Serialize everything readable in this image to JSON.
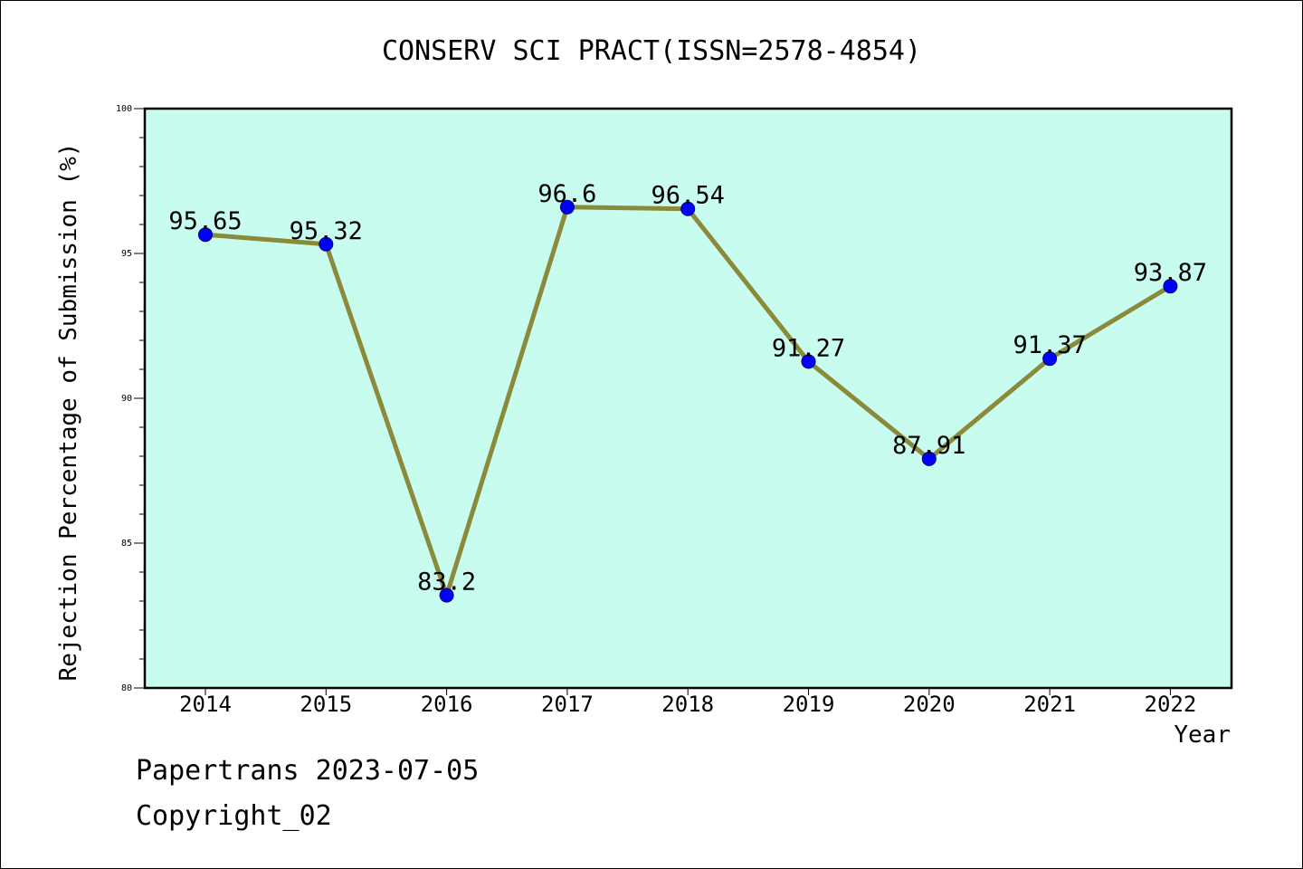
{
  "chart_data": {
    "type": "line",
    "title": "CONSERV SCI PRACT(ISSN=2578-4854)",
    "xlabel": "Year",
    "ylabel": "Rejection Percentage of Submission (%)",
    "categories": [
      "2014",
      "2015",
      "2016",
      "2017",
      "2018",
      "2019",
      "2020",
      "2021",
      "2022"
    ],
    "values": [
      95.65,
      95.32,
      83.2,
      96.6,
      96.54,
      91.27,
      87.91,
      91.37,
      93.87
    ],
    "data_labels": [
      "95.65",
      "95.32",
      "83.2",
      "96.6",
      "96.54",
      "91.27",
      "87.91",
      "91.37",
      "93.87"
    ],
    "ylim": [
      80,
      100
    ],
    "yticks": [
      80,
      85,
      90,
      95,
      100
    ],
    "ytick_labels": [
      "80",
      "85",
      "90",
      "95",
      "100"
    ],
    "grid": false,
    "colors": {
      "plot_background": "#c7fcee",
      "line": "#8a8a3a",
      "marker": "#0000ff"
    }
  },
  "footer": {
    "line1": "Papertrans 2023-07-05",
    "line2": "Copyright_02"
  }
}
